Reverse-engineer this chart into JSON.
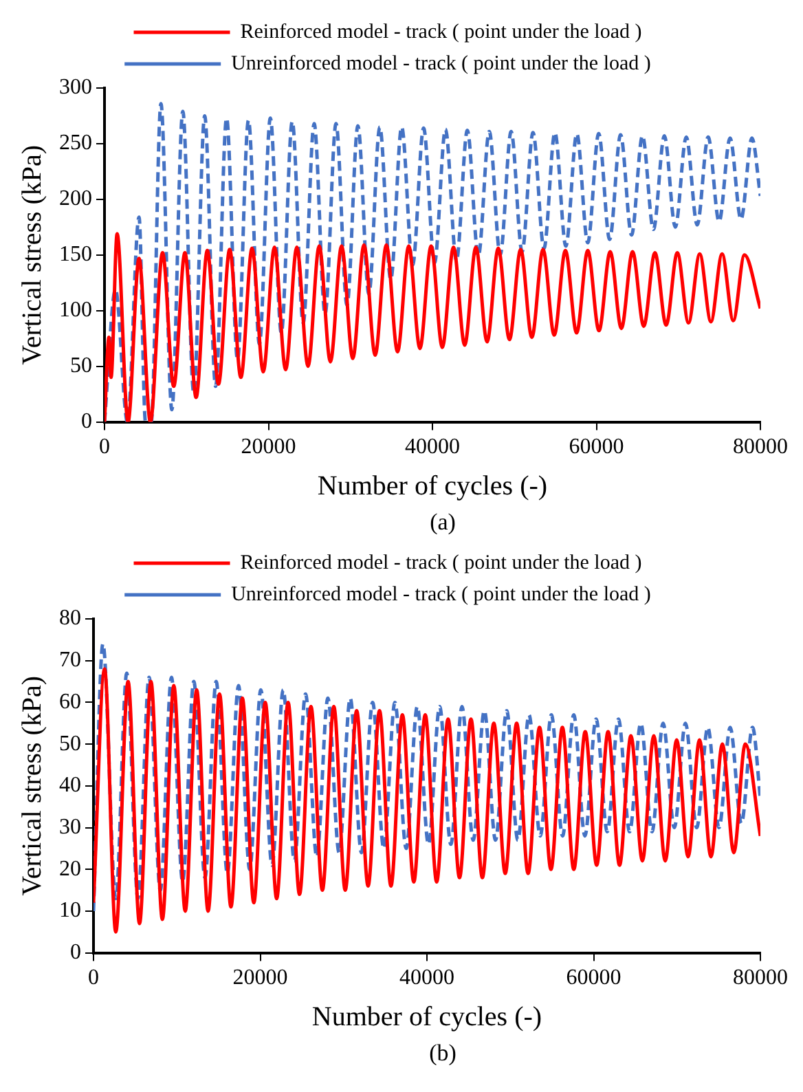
{
  "chart_data": [
    {
      "type": "line",
      "xlabel": "Number of cycles (-)",
      "ylabel": "Vertical stress (kPa)",
      "xlim": [
        0,
        80000
      ],
      "xticks": [
        0,
        20000,
        40000,
        60000,
        80000
      ],
      "ylim": [
        0,
        300
      ],
      "yticks": [
        0,
        50,
        100,
        150,
        200,
        250,
        300
      ],
      "grid": false,
      "legend": "top",
      "marker": "none",
      "annotations": [
        "(a)"
      ],
      "series": [
        {
          "name": "Reinforced model - track ( point under the load )",
          "color": "#ff0000",
          "line_style": "solid",
          "x": [
            0,
            540,
            800,
            1540,
            2870,
            4210,
            5600,
            7080,
            8445,
            9810,
            11175,
            12540,
            13905,
            15270,
            16635,
            18000,
            19365,
            20730,
            22095,
            23460,
            24825,
            26190,
            27555,
            28920,
            30285,
            31650,
            33015,
            34380,
            35745,
            37110,
            38475,
            39840,
            41205,
            42570,
            43935,
            45300,
            46665,
            48030,
            49395,
            50760,
            52125,
            53490,
            54855,
            56220,
            57585,
            58950,
            60315,
            61680,
            63045,
            64410,
            65775,
            67140,
            68505,
            69870,
            71235,
            72600,
            73965,
            75330,
            76695,
            78060,
            80000
          ],
          "values": [
            0,
            76,
            40,
            169,
            0,
            147,
            0,
            152,
            32,
            152,
            22,
            154,
            34,
            155,
            40,
            156,
            45,
            157,
            47,
            157,
            50,
            158,
            54,
            158,
            57,
            159,
            60,
            159,
            63,
            158,
            66,
            158,
            67,
            157,
            69,
            157,
            72,
            156,
            74,
            155,
            76,
            155,
            78,
            154,
            80,
            154,
            82,
            153,
            84,
            153,
            86,
            152,
            87,
            152,
            89,
            151,
            90,
            151,
            91,
            150,
            102
          ]
        },
        {
          "name": "Unreinforced model - track ( point under the load )",
          "color": "#4472c4",
          "line_style": "dashed",
          "x": [
            0,
            1340,
            2800,
            4210,
            5000,
            5700,
            6880,
            8215,
            9550,
            10885,
            12220,
            13555,
            14890,
            16225,
            17560,
            18895,
            20230,
            21565,
            22900,
            24235,
            25570,
            26905,
            28240,
            29575,
            30910,
            32245,
            33580,
            34915,
            36250,
            37585,
            38920,
            40255,
            41590,
            42925,
            44260,
            45595,
            46930,
            48265,
            49600,
            50935,
            52270,
            53605,
            54940,
            56275,
            57610,
            58945,
            60280,
            61615,
            62950,
            64285,
            65620,
            66955,
            68290,
            69625,
            70960,
            72295,
            73630,
            74965,
            76300,
            77635,
            78970,
            80000
          ],
          "values": [
            0,
            119,
            0,
            184,
            0,
            0,
            286,
            11,
            279,
            26,
            275,
            32,
            273,
            56,
            271,
            70,
            273,
            80,
            270,
            89,
            268,
            97,
            268,
            105,
            266,
            115,
            265,
            128,
            265,
            141,
            264,
            143,
            263,
            145,
            262,
            149,
            261,
            150,
            261,
            153,
            260,
            156,
            260,
            158,
            259,
            161,
            259,
            164,
            258,
            168,
            257,
            173,
            257,
            175,
            256,
            177,
            256,
            180,
            255,
            182,
            255,
            203
          ]
        }
      ]
    },
    {
      "type": "line",
      "xlabel": "Number of cycles (-)",
      "ylabel": "Vertical stress (kPa)",
      "xlim": [
        0,
        80000
      ],
      "xticks": [
        0,
        20000,
        40000,
        60000,
        80000
      ],
      "ylim": [
        0,
        80
      ],
      "yticks": [
        0,
        10,
        20,
        30,
        40,
        50,
        60,
        70,
        80
      ],
      "grid": false,
      "legend": "top",
      "marker": "none",
      "annotations": [
        "(b)"
      ],
      "series": [
        {
          "name": "Reinforced model - track ( point under the load )",
          "color": "#ff0000",
          "line_style": "solid",
          "x": [
            0,
            1330,
            2670,
            4150,
            5521,
            6892,
            8263,
            9634,
            11005,
            12376,
            13747,
            15118,
            16489,
            17860,
            19231,
            20602,
            21973,
            23344,
            24715,
            26086,
            27457,
            28828,
            30199,
            31570,
            32941,
            34312,
            35683,
            37054,
            38425,
            39796,
            41167,
            42538,
            43909,
            45280,
            46651,
            48022,
            49393,
            50764,
            52135,
            53506,
            54877,
            56248,
            57619,
            58990,
            60361,
            61732,
            63103,
            64474,
            65845,
            67216,
            68587,
            69958,
            71329,
            72700,
            74071,
            75442,
            76813,
            78184,
            80000
          ],
          "values": [
            12,
            68,
            5,
            65,
            7,
            65,
            8,
            64,
            10,
            63,
            10,
            62,
            11,
            61,
            12,
            60,
            13,
            60,
            14,
            59,
            15,
            59,
            15,
            58,
            16,
            58,
            16,
            57,
            17,
            57,
            17,
            56,
            18,
            56,
            18,
            55,
            19,
            55,
            19,
            54,
            20,
            54,
            20,
            53,
            21,
            53,
            21,
            52,
            22,
            52,
            22,
            51,
            23,
            51,
            23,
            50,
            24,
            50,
            28
          ]
        },
        {
          "name": "Unreinforced model - track ( point under the load )",
          "color": "#4472c4",
          "line_style": "dashed",
          "x": [
            0,
            1130,
            2670,
            3990,
            5331,
            6671,
            8012,
            9352,
            10693,
            12033,
            13374,
            14714,
            16055,
            17395,
            18736,
            20076,
            21417,
            22757,
            24098,
            25438,
            26779,
            28119,
            29460,
            30800,
            32141,
            33481,
            34822,
            36162,
            37503,
            38843,
            40184,
            41524,
            42865,
            44205,
            45546,
            46886,
            48227,
            49567,
            50908,
            52248,
            53589,
            54929,
            56270,
            57610,
            58951,
            60291,
            61632,
            62972,
            64313,
            65653,
            66994,
            68334,
            69675,
            71015,
            72356,
            73696,
            75037,
            76377,
            77718,
            79058,
            80000
          ],
          "values": [
            10,
            74,
            13,
            67,
            13,
            66,
            15,
            66,
            17,
            65,
            18,
            65,
            19,
            64,
            20,
            63,
            21,
            63,
            22,
            62,
            23,
            61,
            24,
            61,
            24,
            60,
            25,
            60,
            25,
            59,
            26,
            59,
            26,
            59,
            27,
            58,
            27,
            58,
            27,
            57,
            28,
            57,
            28,
            57,
            28,
            56,
            29,
            56,
            29,
            55,
            29,
            55,
            30,
            55,
            30,
            54,
            30,
            54,
            31,
            54,
            37
          ]
        }
      ]
    }
  ]
}
